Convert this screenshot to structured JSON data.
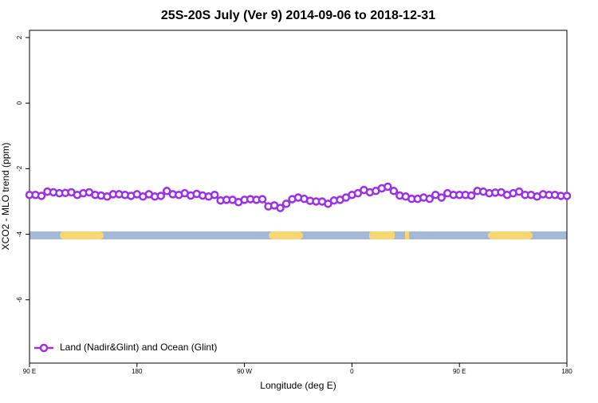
{
  "chart_data": {
    "type": "line",
    "title": "25S-20S July (Ver 9)   2014-09-06 to 2018-12-31",
    "x_label": "Longitude (deg E)",
    "y_label": "XCO2 - MLO trend (ppm)",
    "xlim": [
      90,
      540
    ],
    "xticks": [
      {
        "value": 90,
        "label": "90 E"
      },
      {
        "value": 180,
        "label": "180"
      },
      {
        "value": 270,
        "label": "90 W"
      },
      {
        "value": 360,
        "label": "0"
      },
      {
        "value": 450,
        "label": "90 E"
      },
      {
        "value": 540,
        "label": "180"
      }
    ],
    "ylim": [
      -7.93,
      2.22
    ],
    "yticks": [
      -6,
      -4,
      -2,
      0,
      2
    ],
    "legend": "bottom-left",
    "x": [
      90,
      95,
      100,
      105,
      110,
      115,
      120,
      125,
      130,
      135,
      140,
      145,
      150,
      155,
      160,
      165,
      170,
      175,
      180,
      185,
      190,
      195,
      200,
      205,
      210,
      215,
      220,
      225,
      230,
      235,
      240,
      245,
      250,
      255,
      260,
      265,
      270,
      275,
      280,
      285,
      290,
      295,
      300,
      305,
      310,
      315,
      320,
      325,
      330,
      335,
      340,
      345,
      350,
      355,
      360,
      365,
      370,
      375,
      380,
      385,
      390,
      395,
      400,
      405,
      410,
      415,
      420,
      425,
      430,
      435,
      440,
      445,
      450,
      455,
      460,
      465,
      470,
      475,
      480,
      485,
      490,
      495,
      500,
      505,
      510,
      515,
      520,
      525,
      530,
      535,
      540
    ],
    "series": [
      {
        "name": "Land (Nadir&Glint) and Ocean (Glint)",
        "color": "#9b30e8",
        "values": [
          -2.8,
          -2.8,
          -2.83,
          -2.7,
          -2.72,
          -2.75,
          -2.74,
          -2.72,
          -2.8,
          -2.75,
          -2.72,
          -2.8,
          -2.82,
          -2.85,
          -2.78,
          -2.78,
          -2.8,
          -2.83,
          -2.78,
          -2.85,
          -2.78,
          -2.85,
          -2.83,
          -2.68,
          -2.78,
          -2.8,
          -2.75,
          -2.82,
          -2.77,
          -2.82,
          -2.85,
          -2.8,
          -2.97,
          -2.95,
          -2.95,
          -3.02,
          -2.95,
          -2.93,
          -2.95,
          -2.93,
          -3.15,
          -3.12,
          -3.2,
          -3.07,
          -2.93,
          -2.88,
          -2.92,
          -2.98,
          -3.0,
          -3.0,
          -3.07,
          -2.97,
          -2.95,
          -2.88,
          -2.8,
          -2.75,
          -2.65,
          -2.72,
          -2.68,
          -2.6,
          -2.55,
          -2.68,
          -2.82,
          -2.85,
          -2.92,
          -2.92,
          -2.88,
          -2.92,
          -2.8,
          -2.88,
          -2.75,
          -2.8,
          -2.8,
          -2.8,
          -2.82,
          -2.68,
          -2.7,
          -2.75,
          -2.73,
          -2.72,
          -2.8,
          -2.75,
          -2.7,
          -2.8,
          -2.8,
          -2.85,
          -2.78,
          -2.8,
          -2.8,
          -2.83,
          -2.83
        ]
      }
    ]
  }
}
